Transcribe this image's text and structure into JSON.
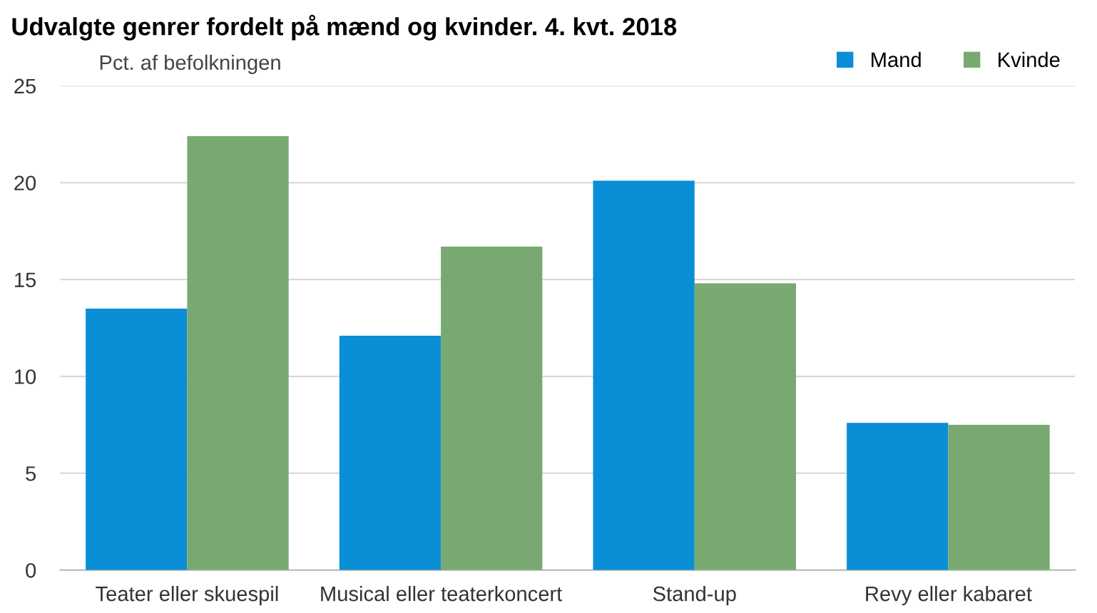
{
  "chart_data": {
    "type": "bar",
    "title": "Udvalgte genrer fordelt på mænd og kvinder. 4. kvt. 2018",
    "ylabel": "Pct. af befolkningen",
    "categories": [
      "Teater eller skuespil",
      "Musical eller teaterkoncert",
      "Stand-up",
      "Revy eller kabaret"
    ],
    "series": [
      {
        "name": "Mand",
        "color": "#0a8ed6",
        "values": [
          13.5,
          12.1,
          20.1,
          7.6
        ]
      },
      {
        "name": "Kvinde",
        "color": "#78a971",
        "values": [
          22.4,
          16.7,
          14.8,
          7.5
        ]
      }
    ],
    "ylim": [
      0,
      25
    ],
    "yticks": [
      0,
      5,
      10,
      15,
      20,
      25
    ],
    "grid": "y",
    "legend": "top right"
  }
}
